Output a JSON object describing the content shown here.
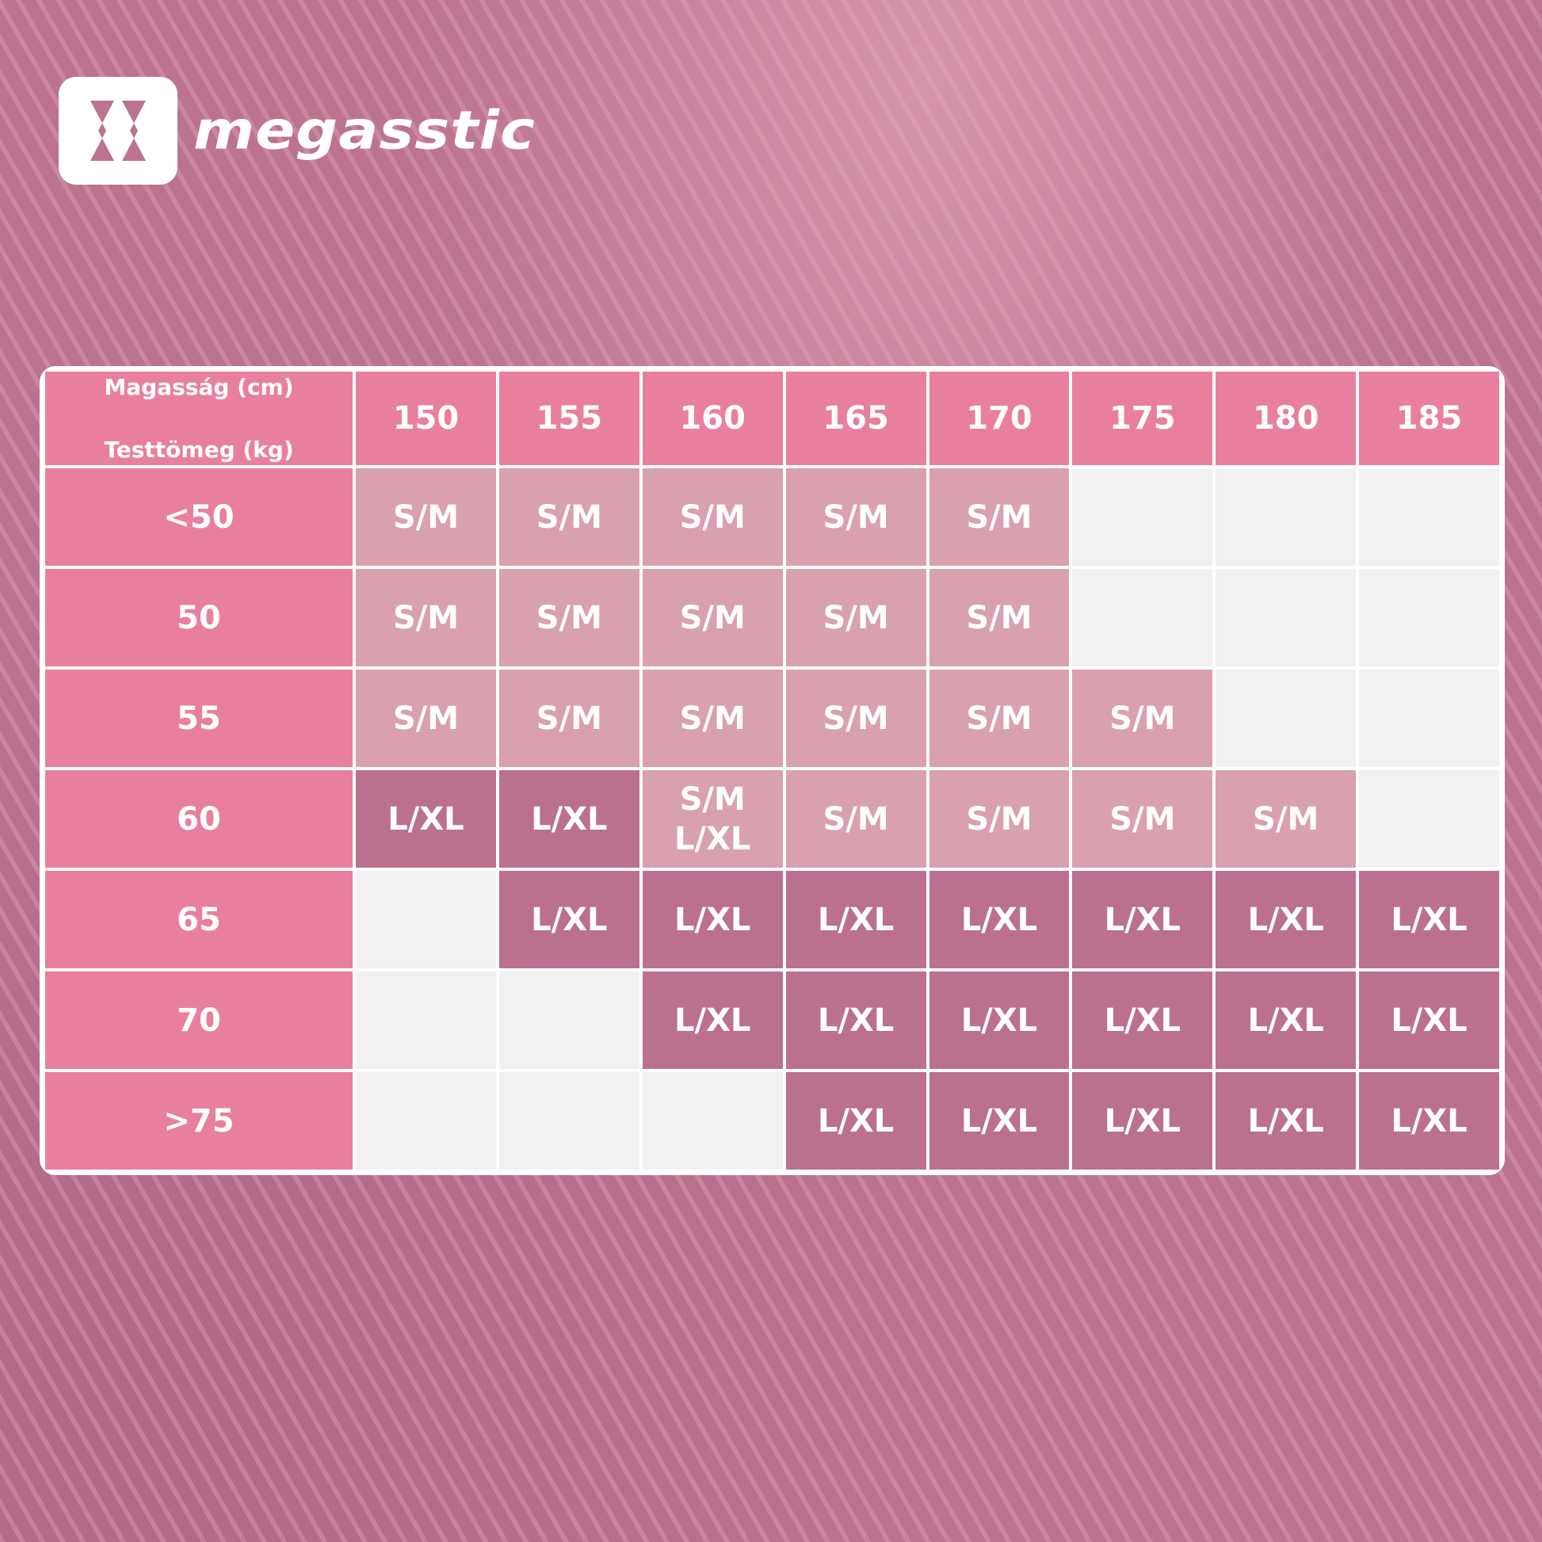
{
  "brand": {
    "name": "megasstic"
  },
  "colors": {
    "header": "#e97f9f",
    "sm": "#d9a0b0",
    "lxl": "#bb7090",
    "empty": "#f1f1f1",
    "background": "#bb7390"
  },
  "table": {
    "corner_line1": "Magasság (cm)",
    "corner_line2": "Testtömeg (kg)",
    "heights": [
      "150",
      "155",
      "160",
      "165",
      "170",
      "175",
      "180",
      "185"
    ],
    "rows": [
      {
        "weight": "<50",
        "cells": [
          "S/M",
          "S/M",
          "S/M",
          "S/M",
          "S/M",
          "",
          "",
          ""
        ]
      },
      {
        "weight": "50",
        "cells": [
          "S/M",
          "S/M",
          "S/M",
          "S/M",
          "S/M",
          "",
          "",
          ""
        ]
      },
      {
        "weight": "55",
        "cells": [
          "S/M",
          "S/M",
          "S/M",
          "S/M",
          "S/M",
          "S/M",
          "",
          ""
        ]
      },
      {
        "weight": "60",
        "cells": [
          "L/XL",
          "L/XL",
          "S/M\nL/XL",
          "S/M",
          "S/M",
          "S/M",
          "S/M",
          ""
        ]
      },
      {
        "weight": "65",
        "cells": [
          "",
          "L/XL",
          "L/XL",
          "L/XL",
          "L/XL",
          "L/XL",
          "L/XL",
          "L/XL"
        ]
      },
      {
        "weight": "70",
        "cells": [
          "",
          "",
          "L/XL",
          "L/XL",
          "L/XL",
          "L/XL",
          "L/XL",
          "L/XL"
        ]
      },
      {
        "weight": ">75",
        "cells": [
          "",
          "",
          "",
          "L/XL",
          "L/XL",
          "L/XL",
          "L/XL",
          "L/XL"
        ]
      }
    ]
  }
}
